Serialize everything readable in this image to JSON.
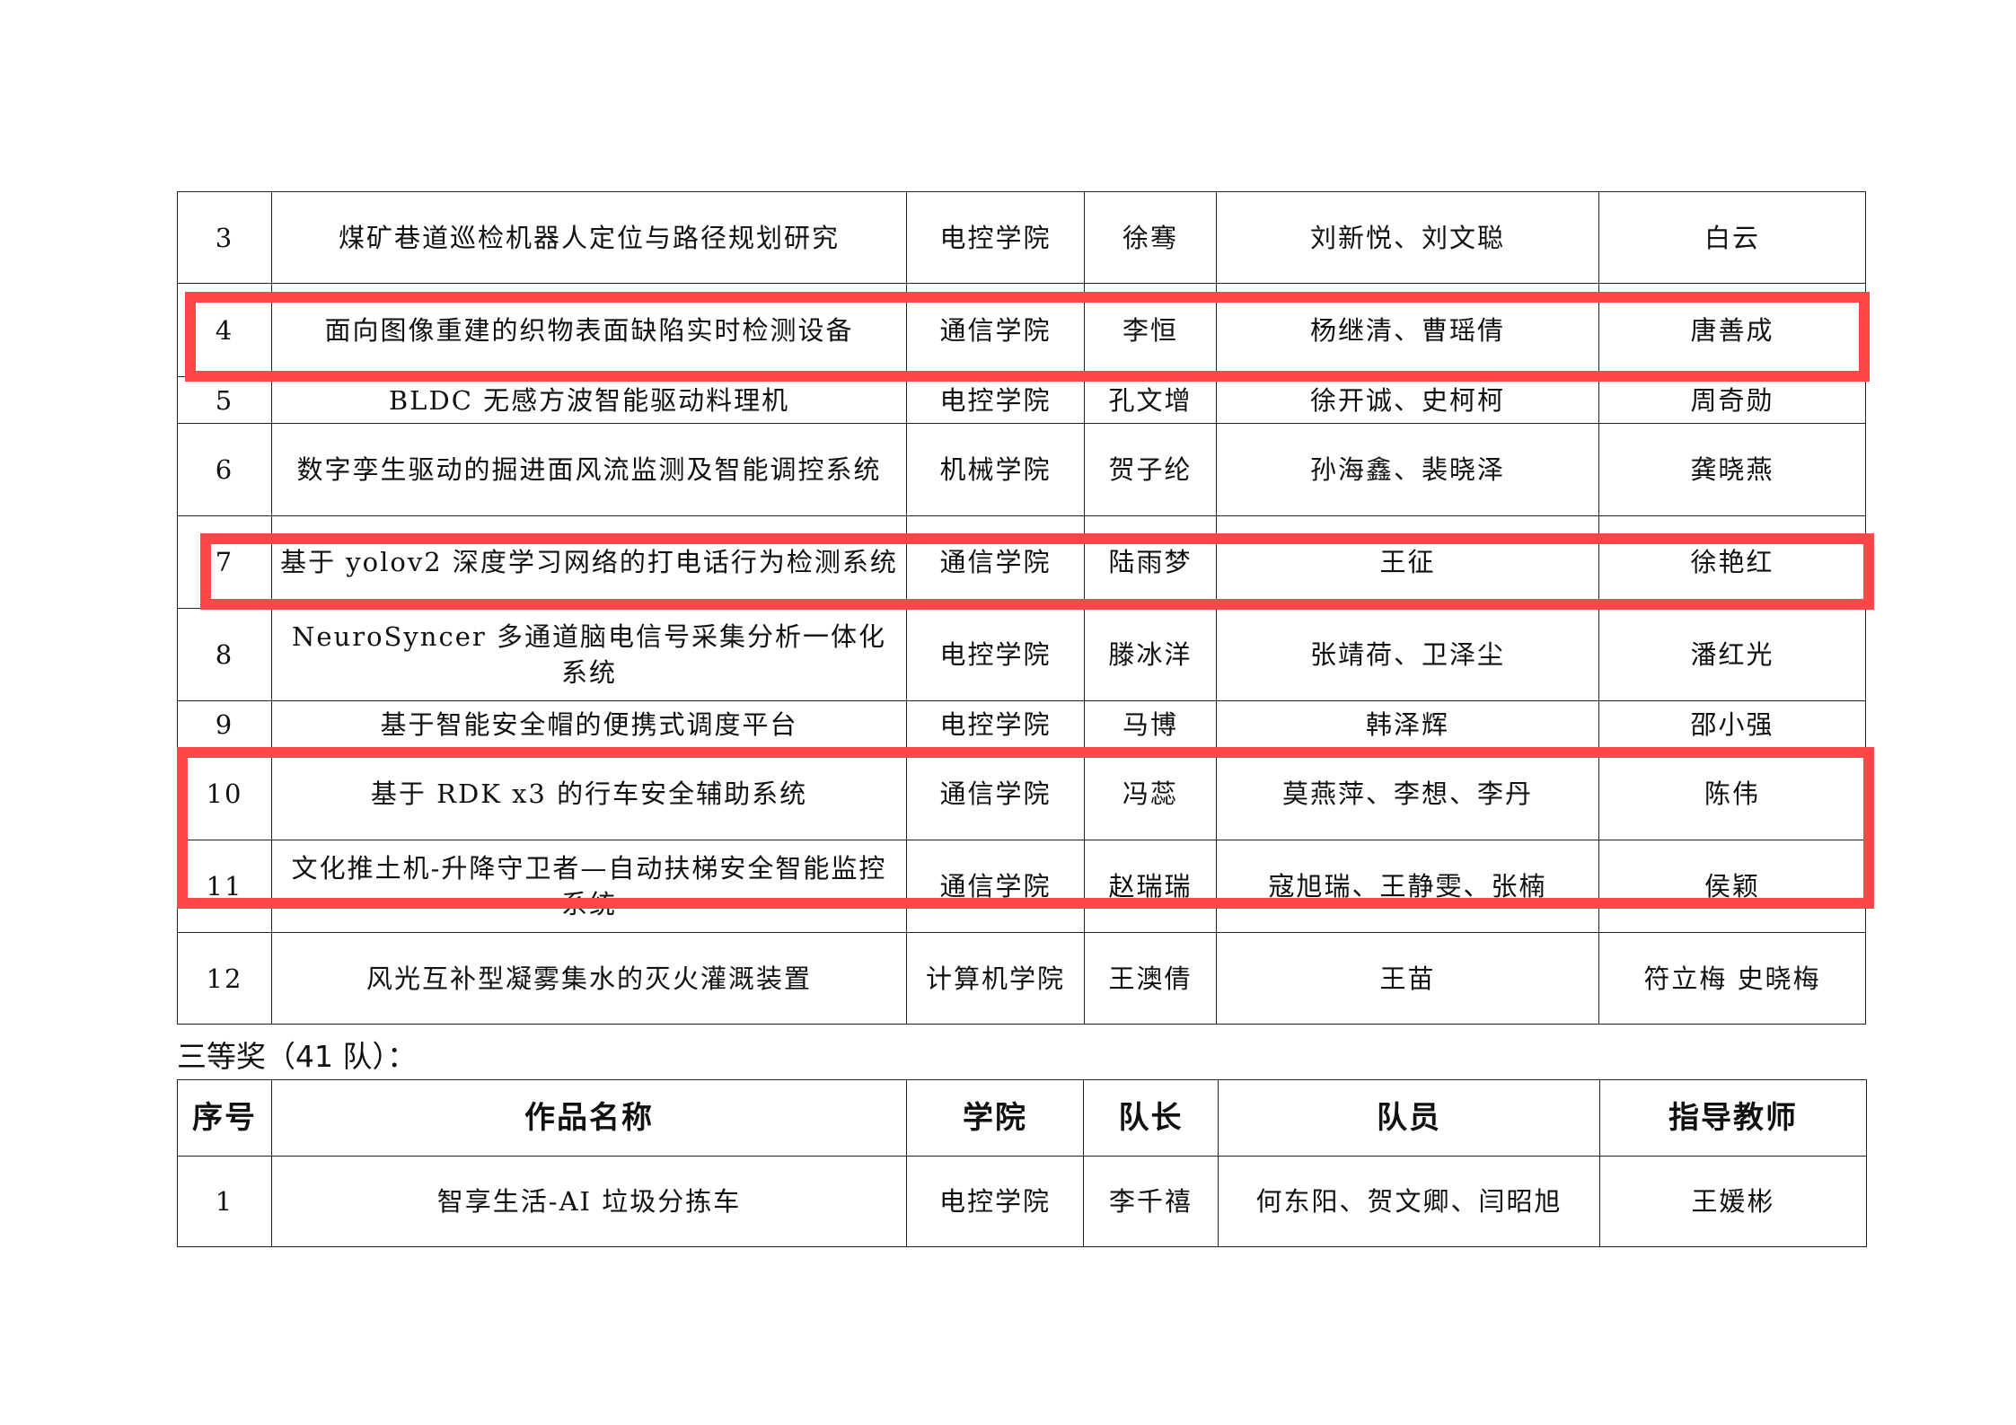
{
  "award_table_continued": {
    "rows": [
      {
        "no": "3",
        "title": "煤矿巷道巡检机器人定位与路径规划研究",
        "college": "电控学院",
        "leader": "徐骞",
        "members": "刘新悦、刘文聪",
        "advisor": "白云"
      },
      {
        "no": "4",
        "title": "面向图像重建的织物表面缺陷实时检测设备",
        "college": "通信学院",
        "leader": "李恒",
        "members": "杨继清、曹瑶倩",
        "advisor": "唐善成"
      },
      {
        "no": "5",
        "title": "BLDC 无感方波智能驱动料理机",
        "college": "电控学院",
        "leader": "孔文增",
        "members": "徐开诚、史柯柯",
        "advisor": "周奇勋"
      },
      {
        "no": "6",
        "title": "数字孪生驱动的掘进面风流监测及智能调控系统",
        "college": "机械学院",
        "leader": "贺子纶",
        "members": "孙海鑫、裴晓泽",
        "advisor": "龚晓燕"
      },
      {
        "no": "7",
        "title": "基于 yolov2 深度学习网络的打电话行为检测系统",
        "college": "通信学院",
        "leader": "陆雨梦",
        "members": "王征",
        "advisor": "徐艳红"
      },
      {
        "no": "8",
        "title": "NeuroSyncer 多通道脑电信号采集分析一体化系统",
        "college": "电控学院",
        "leader": "滕冰洋",
        "members": "张靖荷、卫泽尘",
        "advisor": "潘红光"
      },
      {
        "no": "9",
        "title": "基于智能安全帽的便携式调度平台",
        "college": "电控学院",
        "leader": "马博",
        "members": "韩泽辉",
        "advisor": "邵小强"
      },
      {
        "no": "10",
        "title": "基于 RDK x3 的行车安全辅助系统",
        "college": "通信学院",
        "leader": "冯蕊",
        "members": "莫燕萍、李想、李丹",
        "advisor": "陈伟"
      },
      {
        "no": "11",
        "title": "文化推土机-升降守卫者—自动扶梯安全智能监控系统",
        "college": "通信学院",
        "leader": "赵瑞瑞",
        "members": "寇旭瑞、王静雯、张楠",
        "advisor": "侯颖"
      },
      {
        "no": "12",
        "title": "风光互补型凝雾集水的灭火灌溉装置",
        "college": "计算机学院",
        "leader": "王澳倩",
        "members": "王苗",
        "advisor": "符立梅 史晓梅"
      }
    ]
  },
  "third_prize": {
    "heading": "三等奖（41 队）：",
    "headers": {
      "no": "序号",
      "title": "作品名称",
      "college": "学院",
      "leader": "队长",
      "members": "队员",
      "advisor": "指导教师"
    },
    "rows": [
      {
        "no": "1",
        "title": "智享生活-AI 垃圾分拣车",
        "college": "电控学院",
        "leader": "李千禧",
        "members": "何东阳、贺文卿、闫昭旭",
        "advisor": "王媛彬"
      }
    ]
  },
  "highlight_color": "#ff474a"
}
